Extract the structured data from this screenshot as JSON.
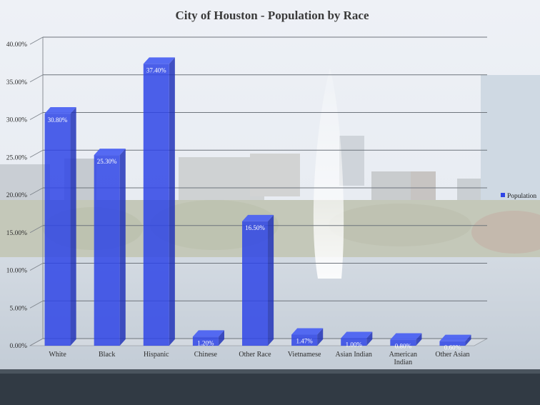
{
  "chart_data": {
    "type": "bar",
    "title": "City of Houston - Population by Race",
    "categories": [
      "White",
      "Black",
      "Hispanic",
      "Chinese",
      "Other Race",
      "Vietnamese",
      "Asian Indian",
      "American Indian",
      "Other Asian"
    ],
    "series": [
      {
        "name": "Population",
        "values": [
          30.8,
          25.3,
          37.4,
          1.2,
          16.5,
          1.47,
          1.0,
          0.8,
          0.6
        ]
      }
    ],
    "data_labels": [
      "30.80%",
      "25.30%",
      "37.40%",
      "1.20%",
      "16.50%",
      "1.47%",
      "1.00%",
      "0.80%",
      "0.60%"
    ],
    "y_ticks": [
      "0.00%",
      "5.00%",
      "10.00%",
      "15.00%",
      "20.00%",
      "25.00%",
      "30.00%",
      "35.00%",
      "40.00%"
    ],
    "ylim": [
      0,
      40
    ],
    "grid": true,
    "legend_position": "right",
    "bar_color": "#2f45e6"
  }
}
